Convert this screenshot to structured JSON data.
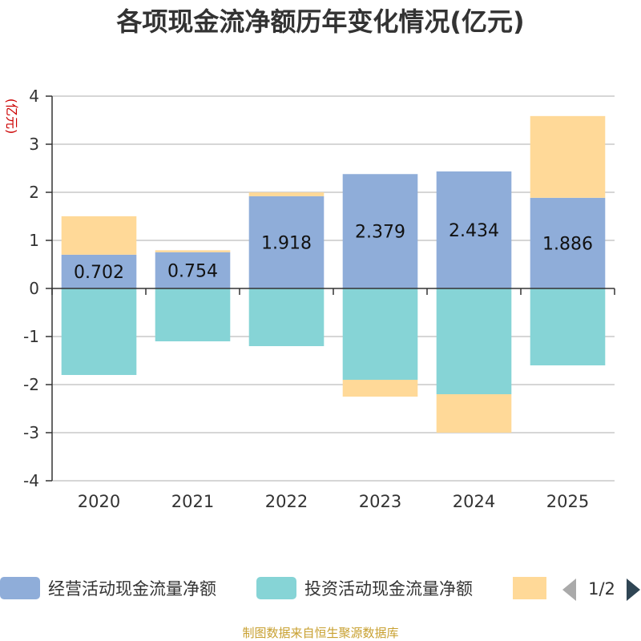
{
  "chart_data": {
    "type": "bar",
    "stacked": true,
    "title": "各项现金流净额历年变化情况(亿元)",
    "ylabel": "(亿元)",
    "xlabel": "",
    "ylim": [
      -4,
      4
    ],
    "yticks": [
      4,
      3,
      2,
      1,
      0,
      -1,
      -2,
      -3,
      -4
    ],
    "categories": [
      "2020",
      "2021",
      "2022",
      "2023",
      "2024",
      "2025"
    ],
    "series": [
      {
        "name": "经营活动现金流量净额",
        "color": "#8fadd9",
        "values": [
          0.702,
          0.754,
          1.918,
          2.379,
          2.434,
          1.886
        ],
        "labels": [
          "0.702",
          "0.754",
          "1.918",
          "2.379",
          "2.434",
          "1.886"
        ]
      },
      {
        "name": "投资活动现金流量净额",
        "color": "#86d4d6",
        "values": [
          -1.8,
          -1.1,
          -1.2,
          -1.9,
          -2.2,
          -1.6
        ]
      },
      {
        "name": "",
        "color": "#ffd998",
        "values": [
          0.8,
          0.04,
          0.08,
          -0.35,
          -0.8,
          1.7
        ]
      }
    ],
    "legend": {
      "position": "bottom",
      "page_indicator": "1/2"
    },
    "source": "制图数据来自恒生聚源数据库"
  }
}
